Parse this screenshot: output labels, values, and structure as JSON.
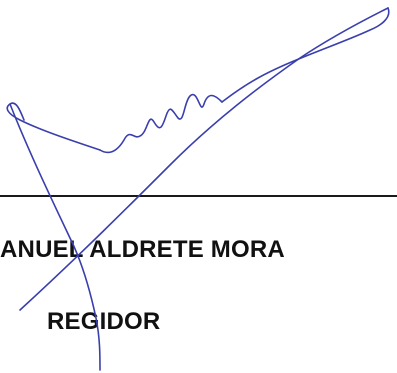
{
  "signer": {
    "name": "ANUEL ALDRETE MORA",
    "title": "REGIDOR"
  },
  "colors": {
    "ink": "#3a3fae",
    "text": "#111111",
    "rule": "#1a1a1a"
  }
}
